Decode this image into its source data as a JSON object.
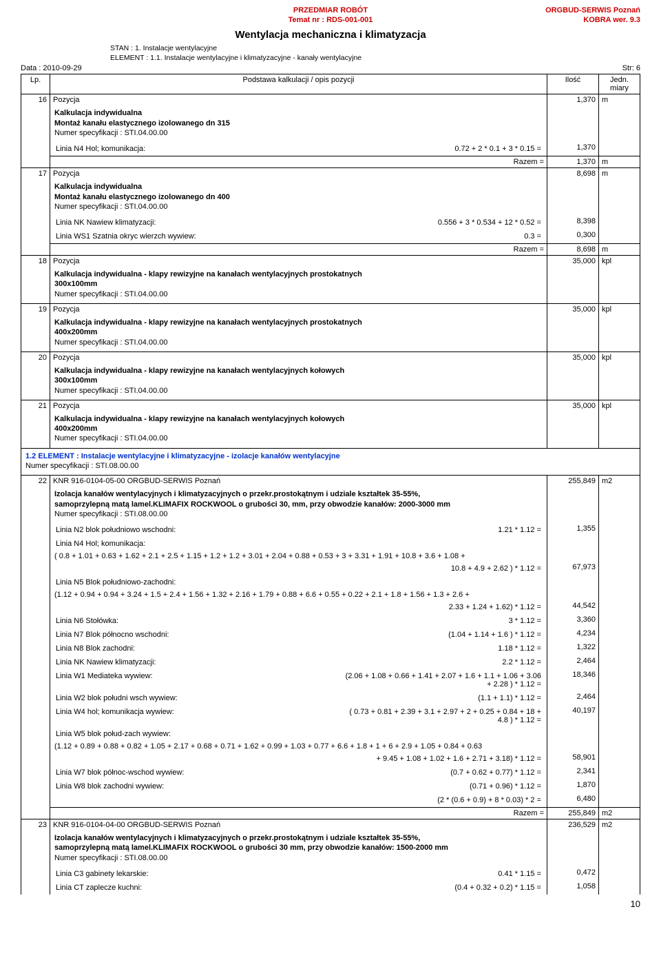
{
  "header": {
    "center_line1": "PRZEDMIAR  ROBÓT",
    "center_line2": "Temat nr : RDS-001-001",
    "right_line1": "ORGBUD-SERWIS Poznań",
    "right_line2": "KOBRA wer. 9.3"
  },
  "title": "Wentylacja mechaniczna i klimatyzacja",
  "stan": "STAN :  1. Instalacje  wentylacyjne",
  "element": "ELEMENT :  1.1. Instalacje wentylacyjne i klimatyzacyjne - kanały wentylacyjne",
  "meta": {
    "date": "Data : 2010-09-29",
    "page": "Str: 6"
  },
  "columns": {
    "lp": "Lp.",
    "desc": "Podstawa kalkulacji / opis pozycji",
    "qty": "Ilość",
    "unit": "Jedn. miary"
  },
  "footer_page": "10",
  "colors": {
    "accent": "#c00",
    "blue": "#0033cc"
  },
  "rows": [
    {
      "lp": "16",
      "top": {
        "title": "Pozycja",
        "qty": "1,370",
        "unit": "m"
      },
      "desc": [
        {
          "t": "Kalkulacja indywidualna",
          "b": true
        },
        {
          "t": "Montaż kanału elastycznego izolowanego  dn 315",
          "b": true
        },
        {
          "t": "Numer specyfikacji :  STI.04.00.00"
        }
      ],
      "calc": [
        {
          "label": "Linia N4 Hol; komunikacja:",
          "expr": "0.72 + 2 * 0.1 + 3 * 0.15 =",
          "qty": "1,370",
          "unit": ""
        }
      ],
      "sum": {
        "label": "Razem   =",
        "qty": "1,370",
        "unit": "m"
      }
    },
    {
      "lp": "17",
      "top": {
        "title": "Pozycja",
        "qty": "8,698",
        "unit": "m"
      },
      "desc": [
        {
          "t": "Kalkulacja indywidualna",
          "b": true
        },
        {
          "t": "Montaż kanału elastycznego izolowanego  dn 400",
          "b": true
        },
        {
          "t": "Numer specyfikacji :  STI.04.00.00"
        }
      ],
      "calc": [
        {
          "label": "Linia NK Nawiew klimatyzacji:",
          "expr": "0.556 + 3 * 0.534 + 12 * 0.52 =",
          "qty": "8,398",
          "unit": ""
        },
        {
          "label": "Linia WS1 Szatnia okryc wierzch wywiew:",
          "expr": "0.3 =",
          "qty": "0,300",
          "unit": ""
        }
      ],
      "sum": {
        "label": "Razem   =",
        "qty": "8,698",
        "unit": "m"
      }
    },
    {
      "lp": "18",
      "top": {
        "title": "Pozycja",
        "qty": "35,000",
        "unit": "kpl"
      },
      "desc": [
        {
          "t": "Kalkulacja indywidualna - klapy rewizyjne na kanałach wentylacyjnych prostokatnych",
          "b": true
        },
        {
          "t": "300x100mm",
          "b": true
        },
        {
          "t": "Numer specyfikacji :  STI.04.00.00"
        }
      ]
    },
    {
      "lp": "19",
      "top": {
        "title": "Pozycja",
        "qty": "35,000",
        "unit": "kpl"
      },
      "desc": [
        {
          "t": "Kalkulacja indywidualna - klapy rewizyjne na kanałach wentylacyjnych prostokatnych",
          "b": true
        },
        {
          "t": "400x200mm",
          "b": true
        },
        {
          "t": "Numer specyfikacji :  STI.04.00.00"
        }
      ]
    },
    {
      "lp": "20",
      "top": {
        "title": "Pozycja",
        "qty": "35,000",
        "unit": "kpl"
      },
      "desc": [
        {
          "t": "Kalkulacja indywidualna - klapy rewizyjne na kanałach wentylacyjnych kołowych",
          "b": true
        },
        {
          "t": "300x100mm",
          "b": true
        },
        {
          "t": "Numer specyfikacji :  STI.04.00.00"
        }
      ]
    },
    {
      "lp": "21",
      "top": {
        "title": "Pozycja",
        "qty": "35,000",
        "unit": "kpl"
      },
      "desc": [
        {
          "t": "Kalkulacja indywidualna - klapy rewizyjne na kanałach wentylacyjnych kołowych",
          "b": true
        },
        {
          "t": "400x200mm",
          "b": true
        },
        {
          "t": "Numer specyfikacji :  STI.04.00.00"
        }
      ]
    },
    {
      "section": true,
      "desc": [
        {
          "t": "1.2",
          "prefix": true
        },
        {
          "t": "ELEMENT :  Instalacje wentylacyjne i klimatyzacyjne - izolacje kanałów wentylacyjne",
          "b": true,
          "blue": true
        },
        {
          "t": "Numer specyfikacji :  STI.08.00.00"
        }
      ]
    },
    {
      "lp": "22",
      "top": {
        "title": "KNR 916-0104-05-00 ORGBUD-SERWIS Poznań",
        "qty": "255,849",
        "unit": "m2"
      },
      "desc": [
        {
          "t": "Izolacja kanałów wentylacyjnych i klimatyzacyjnych o przekr.prostokątnym i udziale kształtek 35-55%,",
          "b": true
        },
        {
          "t": "samoprzylepną matą lamel.KLIMAFIX ROCKWOOL o grubości 30, mm, przy obwodzie kanałów: 2000-3000 mm",
          "b": true
        },
        {
          "t": "Numer specyfikacji :  STI.08.00.00"
        }
      ],
      "calc": [
        {
          "label": "Linia N2 blok południowo wschodni:",
          "expr": "1.21 * 1.12 =",
          "qty": "1,355",
          "unit": ""
        },
        {
          "label": "Linia N4 Hol; komunikacja:",
          "expr": "",
          "qty": "",
          "unit": ""
        },
        {
          "label": "          ( 0.8 + 1.01 + 0.63 + 1.62 + 2.1 + 2.5 + 1.15 + 1.2 + 1.2 + 3.01 + 2.04  + 0.88 + 0.53 + 3 + 3.31 + 1.91 + 10.8 + 3.6  + 1.08 +",
          "expr": "",
          "full": true
        },
        {
          "label": "",
          "expr": "10.8 + 4.9  + 2.62 ) * 1.12 =",
          "qty": "67,973",
          "unit": ""
        },
        {
          "label": "Linia N5 Blok południowo-zachodni:",
          "expr": "",
          "qty": "",
          "unit": ""
        },
        {
          "label": "     (1.12  + 0.94 + 0.94 + 3.24 + 1.5 + 2.4 + 1.56  + 1.32 + 2.16 + 1.79  + 0.88 + 6.6  + 0.55 + 0.22 + 2.1 + 1.8 + 1.56 + 1.3 + 2.6 +",
          "expr": "",
          "full": true
        },
        {
          "label": "",
          "expr": "2.33 + 1.24 + 1.62) * 1.12 =",
          "qty": "44,542",
          "unit": ""
        },
        {
          "label": "Linia N6 Stołówka:",
          "expr": "3 * 1.12 =",
          "qty": "3,360",
          "unit": ""
        },
        {
          "label": "Linia N7 Blok północno wschodni:",
          "expr": "(1.04  + 1.14 + 1.6 ) * 1.12 =",
          "qty": "4,234",
          "unit": ""
        },
        {
          "label": "Linia N8 Blok zachodni:",
          "expr": "1.18 * 1.12 =",
          "qty": "1,322",
          "unit": ""
        },
        {
          "label": "Linia NK Nawiew klimatyzacji:",
          "expr": "2.2 * 1.12 =",
          "qty": "2,464",
          "unit": ""
        },
        {
          "label": "Linia W1 Mediateka wywiew:",
          "expr": "(2.06 + 1.08 + 0.66 + 1.41 + 2.07 + 1.6 + 1.1 + 1.06 + 3.06 + 2.28 ) * 1.12 =",
          "qty": "18,346",
          "unit": ""
        },
        {
          "label": "Linia W2 blok południ wsch wywiew:",
          "expr": "(1.1 + 1.1) * 1.12 =",
          "qty": "2,464",
          "unit": ""
        },
        {
          "label": "Linia W4 hol; komunikacja wywiew:",
          "expr": "( 0.73 + 0.81 + 2.39 + 3.1 + 2.97 + 2 + 0.25 + 0.84 + 18 + 4.8 ) * 1.12 =",
          "qty": "40,197",
          "unit": ""
        },
        {
          "label": "Linia W5 blok połud-zach wywiew:",
          "expr": "",
          "qty": "",
          "unit": ""
        },
        {
          "label": "       (1.12  + 0.89 + 0.88 + 0.82 + 1.05 + 2.17 + 0.68 + 0.71 + 1.62 + 0.99 + 1.03 + 0.77 + 6.6 + 1.8 + 1 + 6 + 2.9 + 1.05 + 0.84 + 0.63",
          "expr": "",
          "full": true
        },
        {
          "label": "",
          "expr": "+ 9.45 + 1.08 + 1.02  + 1.6 + 2.71 + 3.18) * 1.12 =",
          "qty": "58,901",
          "unit": ""
        },
        {
          "label": "Linia W7 blok północ-wschod wywiew:",
          "expr": "(0.7  + 0.62 + 0.77) * 1.12 =",
          "qty": "2,341",
          "unit": ""
        },
        {
          "label": "Linia W8 blok zachodni wywiew:",
          "expr": "(0.71  + 0.96) * 1.12 =",
          "qty": "1,870",
          "unit": ""
        },
        {
          "label": "",
          "expr": "(2 * (0.6 + 0.9) + 8 * 0.03) * 2 =",
          "qty": "6,480",
          "unit": ""
        }
      ],
      "sum": {
        "label": "Razem   =",
        "qty": "255,849",
        "unit": "m2"
      }
    },
    {
      "lp": "23",
      "top": {
        "title": "KNR 916-0104-04-00 ORGBUD-SERWIS Poznań",
        "qty": "236,529",
        "unit": "m2"
      },
      "desc": [
        {
          "t": "Izolacja kanałów wentylacyjnych i klimatyzacyjnych o przekr.prostokątnym i udziale kształtek 35-55%,",
          "b": true
        },
        {
          "t": "samoprzylepną matą lamel.KLIMAFIX ROCKWOOL o grubości 30 mm, przy obwodzie kanałów: 1500-2000 mm",
          "b": true
        },
        {
          "t": "Numer specyfikacji :  STI.08.00.00"
        }
      ],
      "calc": [
        {
          "label": "Linia C3 gabinety lekarskie:",
          "expr": "0.41 * 1.15 =",
          "qty": "0,472",
          "unit": ""
        },
        {
          "label": "Linia CT zaplecze kuchni:",
          "expr": "(0.4 + 0.32 + 0.2) * 1.15 =",
          "qty": "1,058",
          "unit": ""
        }
      ],
      "open": true
    }
  ]
}
